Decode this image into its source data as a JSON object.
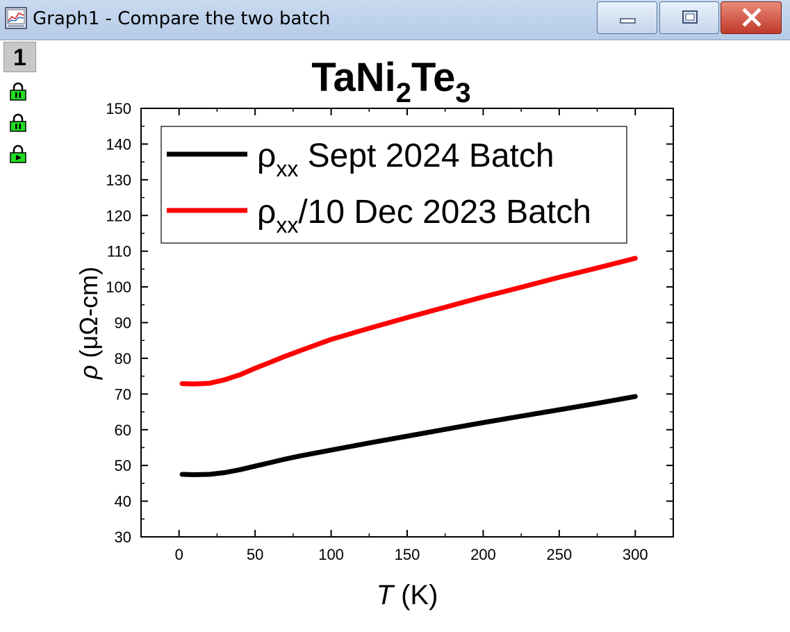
{
  "window": {
    "title": "Graph1 - Compare the two batch",
    "layer_number": "1"
  },
  "icons": {
    "app": "graph-window-icon",
    "lock1": "lock-icon",
    "lock2": "lock-icon",
    "lock3": "lock-play-icon",
    "minimize": "minimize-icon",
    "maximize": "maximize-icon",
    "close": "close-icon"
  },
  "chart_data": {
    "type": "line",
    "title": {
      "base1": "TaNi",
      "sub1": "2",
      "base2": "Te",
      "sub2": "3"
    },
    "xlabel": {
      "italic": "T",
      "unit": " (K)"
    },
    "ylabel": {
      "italic": "ρ",
      "unit": " (μΩ-cm)"
    },
    "xlim": [
      -25,
      325
    ],
    "ylim": [
      30,
      150
    ],
    "x_ticks": [
      "0",
      "50",
      "100",
      "150",
      "200",
      "250",
      "300"
    ],
    "x_tick_values": [
      0,
      50,
      100,
      150,
      200,
      250,
      300
    ],
    "y_ticks": [
      "30",
      "40",
      "50",
      "60",
      "70",
      "80",
      "90",
      "100",
      "110",
      "120",
      "130",
      "140",
      "150"
    ],
    "y_tick_values": [
      30,
      40,
      50,
      60,
      70,
      80,
      90,
      100,
      110,
      120,
      130,
      140,
      150
    ],
    "legend_position": "top-left",
    "series": [
      {
        "color": "#000000",
        "legend": {
          "rho": "ρ",
          "sub": "xx",
          "text": " Sept 2024 Batch"
        },
        "x": [
          2,
          10,
          20,
          30,
          40,
          50,
          60,
          70,
          80,
          100,
          125,
          150,
          175,
          200,
          225,
          250,
          275,
          300
        ],
        "y": [
          47.5,
          47.4,
          47.5,
          48.0,
          48.8,
          49.8,
          50.8,
          51.8,
          52.7,
          54.3,
          56.3,
          58.2,
          60.1,
          62.0,
          63.8,
          65.6,
          67.4,
          69.3
        ]
      },
      {
        "color": "#ff0000",
        "legend": {
          "rho": "ρ",
          "sub": "xx",
          "text": "/10 Dec 2023 Batch"
        },
        "x": [
          2,
          10,
          20,
          30,
          40,
          50,
          60,
          70,
          80,
          100,
          125,
          150,
          175,
          200,
          225,
          250,
          275,
          300
        ],
        "y": [
          72.9,
          72.8,
          73.0,
          74.0,
          75.4,
          77.2,
          78.9,
          80.6,
          82.2,
          85.3,
          88.4,
          91.4,
          94.3,
          97.2,
          99.9,
          102.7,
          105.3,
          108.0
        ]
      }
    ]
  }
}
